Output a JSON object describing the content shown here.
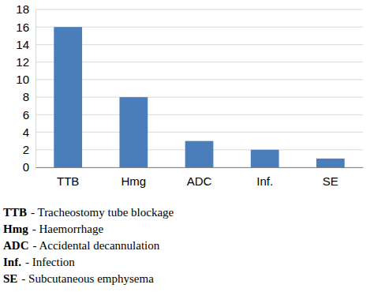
{
  "chart_data": {
    "type": "bar",
    "categories": [
      "TTB",
      "Hmg",
      "ADC",
      "Inf.",
      "SE"
    ],
    "values": [
      16,
      8,
      3,
      2,
      1
    ],
    "color": "#4a7ebb",
    "ylim": [
      0,
      18
    ],
    "yticks": [
      0,
      2,
      4,
      6,
      8,
      10,
      12,
      14,
      16,
      18
    ],
    "grid": true,
    "annotations": [
      {
        "term": "TTB",
        "text": "- Tracheostomy tube blockage"
      },
      {
        "term": "Hmg",
        "text": "- Haemorrhage"
      },
      {
        "term": "ADC",
        "text": "- Accidental decannulation"
      },
      {
        "term": "Inf.",
        "text": "- Infection"
      },
      {
        "term": "SE",
        "text": "- Subcutaneous emphysema"
      }
    ]
  }
}
